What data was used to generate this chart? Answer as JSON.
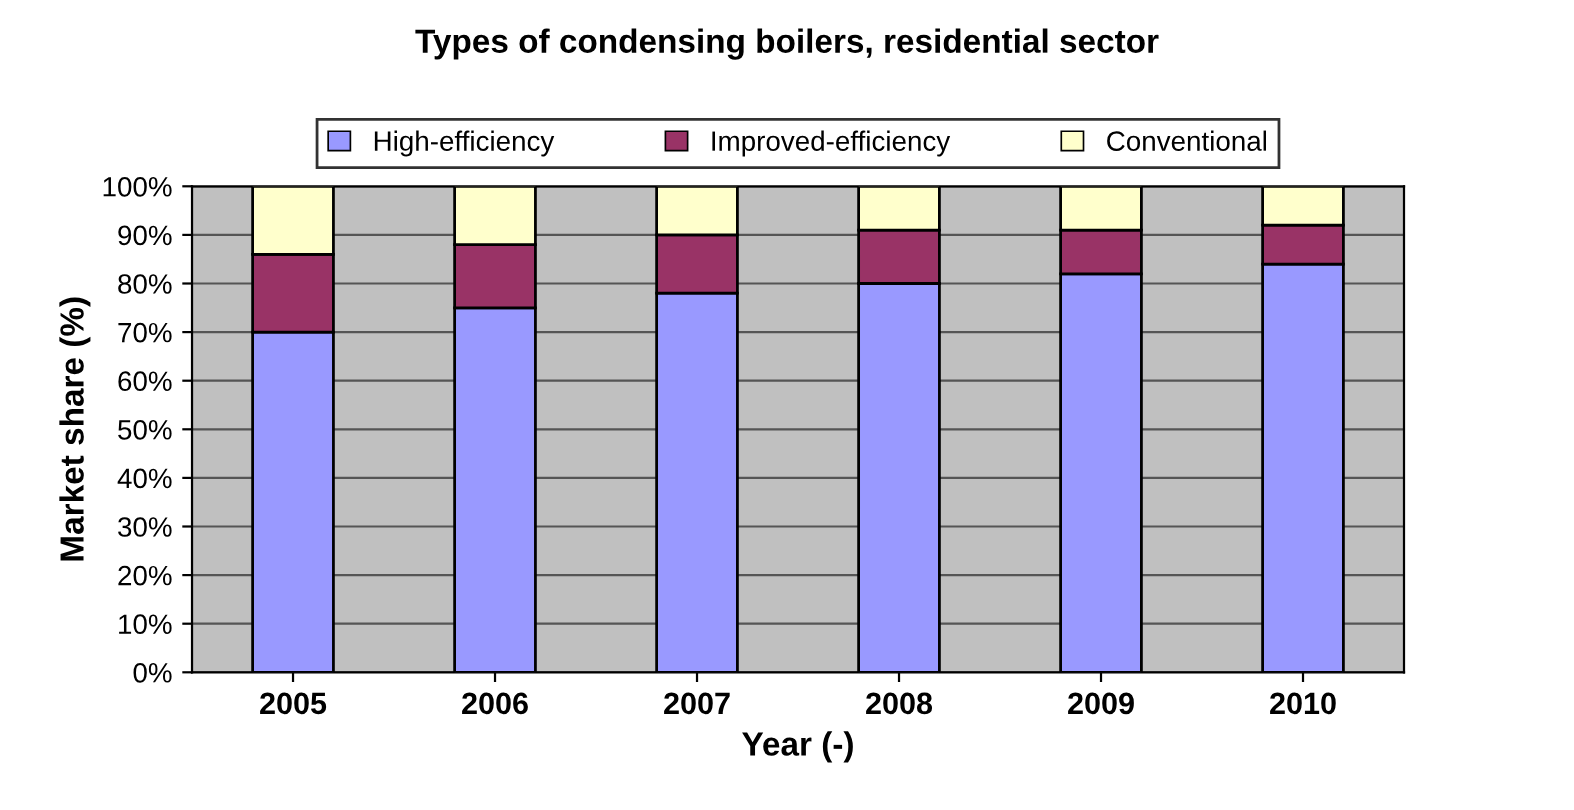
{
  "chart_data": {
    "type": "bar",
    "stacked": true,
    "title": "Types of condensing boilers, residential sector",
    "xlabel": "Year (-)",
    "ylabel": "Market share (%)",
    "categories": [
      "2005",
      "2006",
      "2007",
      "2008",
      "2009",
      "2010"
    ],
    "series": [
      {
        "name": "High-efficiency",
        "color": "#9999ff",
        "values": [
          70,
          75,
          78,
          80,
          82,
          84
        ]
      },
      {
        "name": "Improved-efficiency",
        "color": "#993366",
        "values": [
          16,
          13,
          12,
          11,
          9,
          8
        ]
      },
      {
        "name": "Conventional",
        "color": "#ffffcc",
        "values": [
          14,
          12,
          10,
          9,
          9,
          8
        ]
      }
    ],
    "ylim": [
      0,
      100
    ],
    "yticks": [
      {
        "value": 0,
        "label": "0%"
      },
      {
        "value": 10,
        "label": "10%"
      },
      {
        "value": 20,
        "label": "20%"
      },
      {
        "value": 30,
        "label": "30%"
      },
      {
        "value": 40,
        "label": "40%"
      },
      {
        "value": 50,
        "label": "50%"
      },
      {
        "value": 60,
        "label": "60%"
      },
      {
        "value": 70,
        "label": "70%"
      },
      {
        "value": 80,
        "label": "80%"
      },
      {
        "value": 90,
        "label": "90%"
      },
      {
        "value": 100,
        "label": "100%"
      }
    ],
    "grid": "y",
    "legend": "top"
  }
}
